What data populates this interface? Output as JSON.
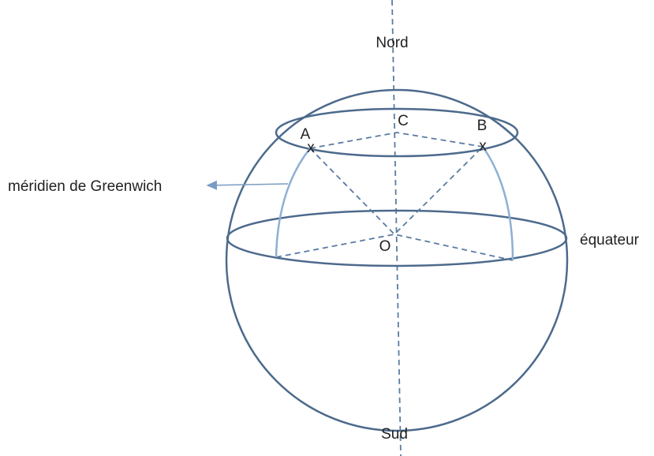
{
  "labels": {
    "north": "Nord",
    "south": "Sud",
    "equator": "équateur",
    "meridian": "méridien de Greenwich"
  },
  "points": {
    "A": "A",
    "B": "B",
    "C": "C",
    "O": "O"
  },
  "markers": [
    "x",
    "x"
  ]
}
